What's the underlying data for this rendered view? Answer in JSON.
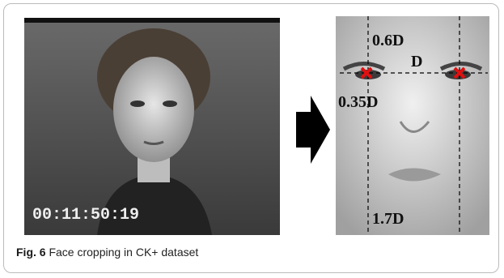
{
  "figure": {
    "left_image": {
      "timecode": "00:11:50:19"
    },
    "right_image": {
      "annotations": [
        "0.6D",
        "D",
        "0.35D",
        "1.7D"
      ]
    },
    "caption": {
      "label": "Fig. 6",
      "text": "Face cropping in CK+ dataset"
    }
  }
}
